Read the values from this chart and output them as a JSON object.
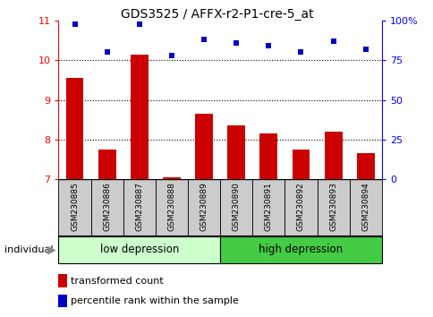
{
  "title": "GDS3525 / AFFX-r2-P1-cre-5_at",
  "samples": [
    "GSM230885",
    "GSM230886",
    "GSM230887",
    "GSM230888",
    "GSM230889",
    "GSM230890",
    "GSM230891",
    "GSM230892",
    "GSM230893",
    "GSM230894"
  ],
  "red_bars": [
    9.55,
    7.75,
    10.15,
    7.05,
    8.65,
    8.35,
    8.15,
    7.75,
    8.2,
    7.65
  ],
  "blue_squares": [
    98,
    80,
    98,
    78,
    88,
    86,
    84,
    80,
    87,
    82
  ],
  "ylim_left": [
    7,
    11
  ],
  "ylim_right": [
    0,
    100
  ],
  "yticks_left": [
    7,
    8,
    9,
    10,
    11
  ],
  "yticks_right": [
    0,
    25,
    50,
    75,
    100
  ],
  "ytick_labels_right": [
    "0",
    "25",
    "50",
    "75",
    "100%"
  ],
  "bar_color": "#cc0000",
  "square_color": "#0000cc",
  "bar_bottom": 7,
  "group1_label": "low depression",
  "group2_label": "high depression",
  "group1_color": "#ccffcc",
  "group2_color": "#44cc44",
  "sample_bg_color": "#cccccc",
  "legend_bar_label": "transformed count",
  "legend_square_label": "percentile rank within the sample",
  "individual_label": "individual",
  "title_fontsize": 10,
  "axis_fontsize": 8,
  "legend_fontsize": 8,
  "sample_fontsize": 6.5,
  "group_fontsize": 8.5
}
